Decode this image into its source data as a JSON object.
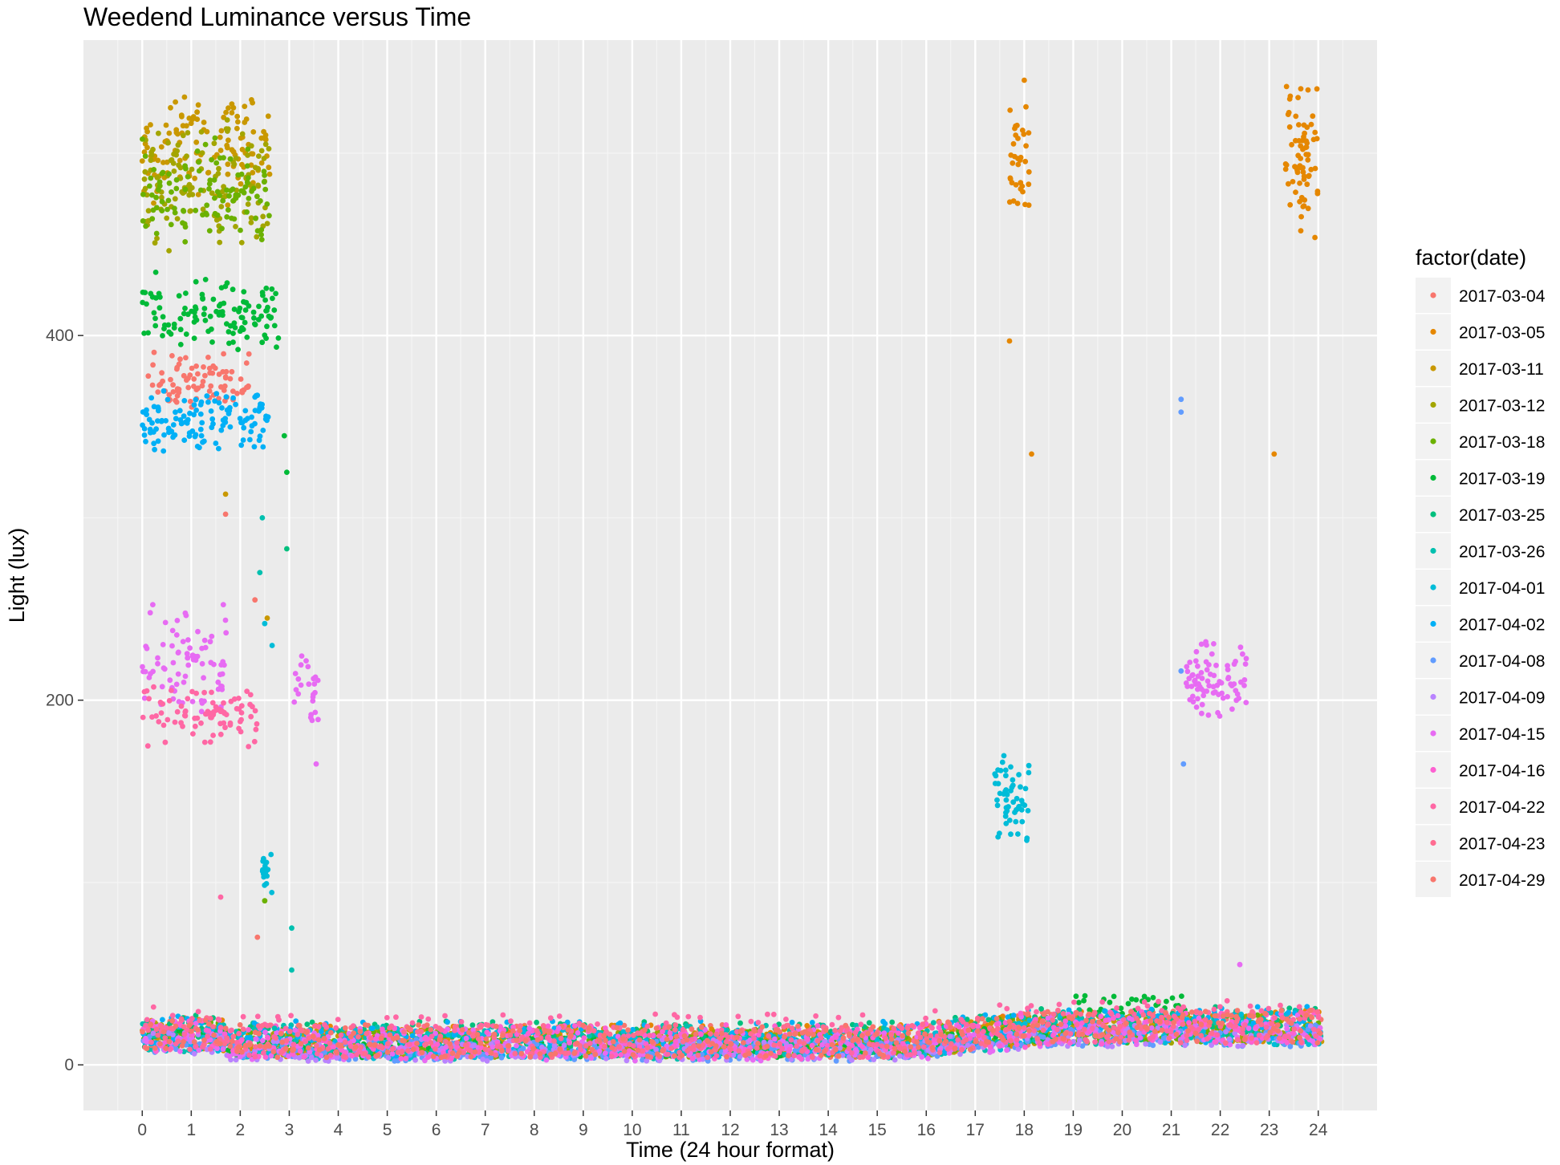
{
  "chart_data": {
    "type": "scatter",
    "title": "Weedend Luminance versus Time",
    "xlabel": "Time (24 hour format)",
    "ylabel": "Light (lux)",
    "xlim": [
      -1.2,
      25.2
    ],
    "ylim": [
      -25,
      562
    ],
    "x_ticks": [
      0,
      1,
      2,
      3,
      4,
      5,
      6,
      7,
      8,
      9,
      10,
      11,
      12,
      13,
      14,
      15,
      16,
      17,
      18,
      19,
      20,
      21,
      22,
      23,
      24
    ],
    "y_ticks": [
      0,
      200,
      400
    ],
    "grid": true,
    "panel_background": "#ebebeb",
    "legend": {
      "title": "factor(date)",
      "position": "right",
      "entries": [
        "2017-03-04",
        "2017-03-05",
        "2017-03-11",
        "2017-03-12",
        "2017-03-18",
        "2017-03-19",
        "2017-03-25",
        "2017-03-26",
        "2017-04-01",
        "2017-04-02",
        "2017-04-08",
        "2017-04-09",
        "2017-04-15",
        "2017-04-16",
        "2017-04-22",
        "2017-04-23",
        "2017-04-29"
      ],
      "colors": [
        "#F8766D",
        "#E58700",
        "#C99800",
        "#A3A500",
        "#6BB100",
        "#00BA38",
        "#00BF7D",
        "#00C0AF",
        "#00BCD8",
        "#00B0F6",
        "#619CFF",
        "#B983FF",
        "#E76BF3",
        "#FD61D1",
        "#FF67A4",
        "#FF6C91",
        "#F8766D"
      ]
    },
    "series": [
      {
        "name": "2017-03-04",
        "color": "#F8766D",
        "clusters": [
          {
            "x": [
              0,
              2.2
            ],
            "y": [
              358,
              392
            ],
            "n": 85
          }
        ],
        "points": [
          [
            2.3,
            255
          ],
          [
            2.35,
            70
          ],
          [
            1.7,
            302
          ]
        ],
        "baseline": [
          [
            0,
            24,
            4,
            22
          ]
        ]
      },
      {
        "name": "2017-03-05",
        "color": "#E58700",
        "clusters": [
          {
            "x": [
              17.7,
              18.1
            ],
            "y": [
              460,
              530
            ],
            "n": 35
          },
          {
            "x": [
              23.3,
              24
            ],
            "y": [
              450,
              545
            ],
            "n": 70
          }
        ],
        "points": [
          [
            17.7,
            397
          ],
          [
            18.15,
            335
          ],
          [
            23.1,
            335
          ],
          [
            18.0,
            540
          ]
        ],
        "baseline": [
          [
            0,
            24,
            4,
            22
          ]
        ]
      },
      {
        "name": "2017-03-11",
        "color": "#C99800",
        "clusters": [
          {
            "x": [
              0,
              2.6
            ],
            "y": [
              470,
              540
            ],
            "n": 130
          }
        ],
        "points": [
          [
            1.7,
            313
          ],
          [
            2.55,
            245
          ]
        ],
        "baseline": [
          [
            0,
            24,
            4,
            20
          ]
        ]
      },
      {
        "name": "2017-03-12",
        "color": "#A3A500",
        "clusters": [
          {
            "x": [
              0,
              2.6
            ],
            "y": [
              445,
              520
            ],
            "n": 120
          }
        ],
        "points": [],
        "baseline": [
          [
            0,
            24,
            4,
            20
          ]
        ]
      },
      {
        "name": "2017-03-18",
        "color": "#6BB100",
        "clusters": [
          {
            "x": [
              0,
              2.6
            ],
            "y": [
              450,
              510
            ],
            "n": 110
          }
        ],
        "points": [
          [
            2.5,
            90
          ]
        ],
        "baseline": [
          [
            0,
            24,
            4,
            20
          ]
        ]
      },
      {
        "name": "2017-03-19",
        "color": "#00BA38",
        "clusters": [
          {
            "x": [
              0,
              2.8
            ],
            "y": [
              390,
              435
            ],
            "n": 120
          }
        ],
        "points": [
          [
            2.9,
            345
          ],
          [
            2.95,
            325
          ]
        ],
        "baseline": [
          [
            0,
            18.5,
            4,
            16
          ],
          [
            19,
            21.3,
            20,
            30
          ]
        ]
      },
      {
        "name": "2017-03-25",
        "color": "#00BF7D",
        "clusters": [],
        "points": [
          [
            2.95,
            283
          ]
        ],
        "baseline": [
          [
            0,
            24,
            4,
            24
          ]
        ]
      },
      {
        "name": "2017-03-26",
        "color": "#00C0AF",
        "clusters": [],
        "points": [
          [
            2.45,
            300
          ],
          [
            2.4,
            270
          ],
          [
            2.7,
            20
          ],
          [
            3.05,
            75
          ],
          [
            3.05,
            52
          ]
        ],
        "baseline": [
          [
            0,
            24,
            3,
            22
          ]
        ]
      },
      {
        "name": "2017-04-01",
        "color": "#00BCD8",
        "clusters": [
          {
            "x": [
              2.45,
              2.65
            ],
            "y": [
              92,
              118
            ],
            "n": 18
          },
          {
            "x": [
              17.4,
              18.1
            ],
            "y": [
              120,
              180
            ],
            "n": 55
          }
        ],
        "points": [
          [
            2.5,
            242
          ],
          [
            2.65,
            230
          ]
        ],
        "baseline": [
          [
            0,
            24,
            3,
            20
          ]
        ]
      },
      {
        "name": "2017-04-02",
        "color": "#00B0F6",
        "clusters": [
          {
            "x": [
              0,
              2.6
            ],
            "y": [
              335,
              372
            ],
            "n": 130
          }
        ],
        "points": [],
        "baseline": [
          [
            0,
            24,
            4,
            24
          ]
        ]
      },
      {
        "name": "2017-04-08",
        "color": "#619CFF",
        "clusters": [],
        "points": [
          [
            21.2,
            365
          ],
          [
            21.2,
            358
          ],
          [
            21.2,
            216
          ],
          [
            21.25,
            165
          ]
        ],
        "baseline": [
          [
            0,
            24,
            2,
            14
          ]
        ]
      },
      {
        "name": "2017-04-09",
        "color": "#B983FF",
        "clusters": [],
        "points": [],
        "baseline": [
          [
            0,
            24,
            2,
            14
          ]
        ]
      },
      {
        "name": "2017-04-15",
        "color": "#E76BF3",
        "clusters": [
          {
            "x": [
              0,
              1.8
            ],
            "y": [
              190,
              255
            ],
            "n": 80
          },
          {
            "x": [
              3.1,
              3.6
            ],
            "y": [
              185,
              225
            ],
            "n": 25
          },
          {
            "x": [
              21.3,
              22.6
            ],
            "y": [
              185,
              235
            ],
            "n": 80
          }
        ],
        "points": [
          [
            3.55,
            165
          ],
          [
            22.4,
            55
          ],
          [
            8.5,
            20
          ],
          [
            7.9,
            20
          ]
        ],
        "baseline": [
          [
            0,
            24,
            2,
            20
          ]
        ]
      },
      {
        "name": "2017-04-16",
        "color": "#FD61D1",
        "clusters": [],
        "points": [],
        "baseline": [
          [
            0,
            24,
            3,
            22
          ]
        ]
      },
      {
        "name": "2017-04-22",
        "color": "#FF67A4",
        "clusters": [
          {
            "x": [
              0,
              2.4
            ],
            "y": [
              172,
              210
            ],
            "n": 85
          }
        ],
        "points": [
          [
            1.6,
            92
          ]
        ],
        "baseline": [
          [
            0,
            24,
            4,
            28
          ]
        ]
      },
      {
        "name": "2017-04-23",
        "color": "#FF6C91",
        "clusters": [],
        "points": [],
        "baseline": [
          [
            0,
            24,
            4,
            22
          ]
        ]
      },
      {
        "name": "2017-04-29",
        "color": "#F8766D",
        "clusters": [],
        "points": [],
        "baseline": [
          [
            0,
            24,
            4,
            22
          ]
        ]
      }
    ]
  }
}
